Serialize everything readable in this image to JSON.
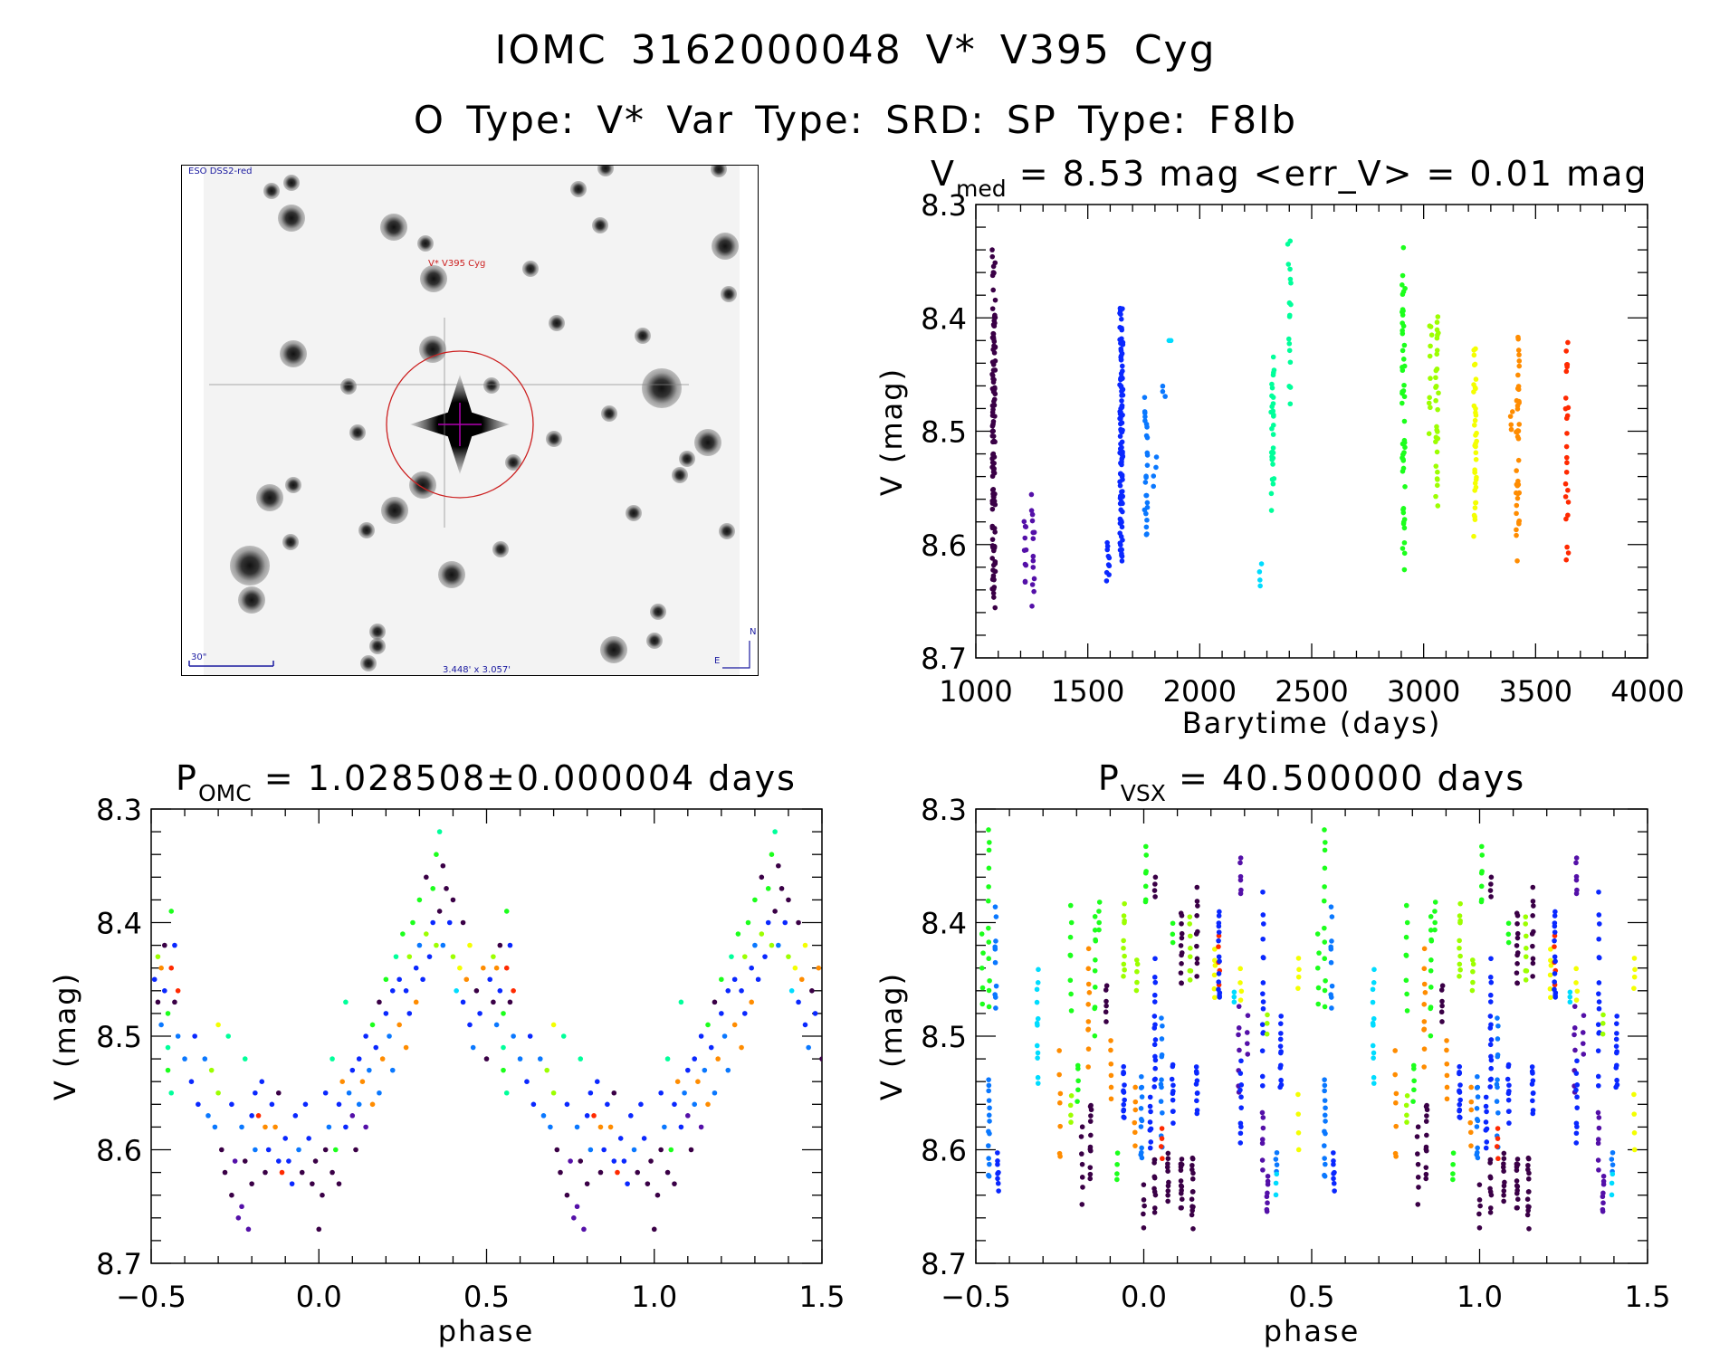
{
  "header": {
    "title_line1": "IOMC 3162000048   V* V395 Cyg",
    "title_line2": "O Type: V*  Var Type: SRD:  SP Type: F8Ib"
  },
  "finder_image": {
    "survey_label": "ESO DSS2-red",
    "target_label": "V* V395 Cyg",
    "scale_label": "30\"",
    "field_label": "3.448' x 3.057'",
    "north_label": "N",
    "east_label": "E",
    "colors": {
      "marker_circle": "#cc2020",
      "crosshair": "#b000b0",
      "labels": "#1a1aa0"
    }
  },
  "palette": [
    "#3a0046",
    "#5410a8",
    "#0a28ff",
    "#0a78ff",
    "#00dcff",
    "#00ff9a",
    "#1cff1c",
    "#9cff00",
    "#f4ff00",
    "#ff8c00",
    "#ff2a00"
  ],
  "chart_data": [
    {
      "id": "lightcurve",
      "type": "scatter",
      "title_main": "V",
      "title_sub": "med",
      "title_rest": " = 8.53 mag <err_V> = 0.01 mag",
      "xlabel": "Barytime (days)",
      "ylabel": "V (mag)",
      "xlim": [
        1000,
        4000
      ],
      "ylim": [
        8.3,
        8.7
      ],
      "y_inverted": true,
      "xticks": [
        "1000",
        "1500",
        "2000",
        "2500",
        "3000",
        "3500",
        "4000"
      ],
      "yticks": [
        "8.3",
        "8.4",
        "8.5",
        "8.6",
        "8.7"
      ],
      "streak_format": [
        "time",
        "mag_bright",
        "mag_faint",
        "n_points",
        "color_index"
      ],
      "streaks": [
        [
          1080,
          8.34,
          8.67,
          120,
          0
        ],
        [
          1220,
          8.57,
          8.64,
          10,
          1
        ],
        [
          1255,
          8.555,
          8.655,
          14,
          1
        ],
        [
          1590,
          8.595,
          8.635,
          10,
          2
        ],
        [
          1650,
          8.38,
          8.625,
          110,
          2
        ],
        [
          1760,
          8.46,
          8.61,
          25,
          3
        ],
        [
          1800,
          8.52,
          8.55,
          4,
          3
        ],
        [
          1840,
          8.46,
          8.47,
          3,
          3
        ],
        [
          1865,
          8.42,
          8.42,
          2,
          4
        ],
        [
          2270,
          8.615,
          8.64,
          4,
          4
        ],
        [
          2325,
          8.43,
          8.57,
          30,
          5
        ],
        [
          2400,
          8.31,
          8.49,
          18,
          5
        ],
        [
          2910,
          8.33,
          8.63,
          50,
          6
        ],
        [
          3030,
          8.39,
          8.505,
          10,
          7
        ],
        [
          3060,
          8.38,
          8.575,
          30,
          7
        ],
        [
          3230,
          8.415,
          8.6,
          40,
          8
        ],
        [
          3390,
          8.48,
          8.5,
          4,
          9
        ],
        [
          3420,
          8.405,
          8.615,
          40,
          9
        ],
        [
          3640,
          8.4,
          8.625,
          25,
          10
        ]
      ]
    },
    {
      "id": "phase_omc",
      "type": "scatter",
      "title_main": "P",
      "title_sub": "OMC",
      "title_rest": " = 1.028508±0.000004 days",
      "xlabel": "phase",
      "ylabel": "V (mag)",
      "xlim": [
        -0.5,
        1.5
      ],
      "ylim": [
        8.3,
        8.7
      ],
      "y_inverted": true,
      "repeat_period": 1.0,
      "xticks": [
        "−0.5",
        "0.0",
        "0.5",
        "1.0",
        "1.5"
      ],
      "yticks": [
        "8.3",
        "8.4",
        "8.5",
        "8.6",
        "8.7"
      ],
      "point_format": [
        "phase",
        "mag",
        "color_index"
      ],
      "points": [
        [
          -0.49,
          8.45,
          2
        ],
        [
          -0.48,
          8.43,
          7
        ],
        [
          -0.48,
          8.47,
          0
        ],
        [
          -0.47,
          8.44,
          9
        ],
        [
          -0.47,
          8.49,
          3
        ],
        [
          -0.46,
          8.42,
          0
        ],
        [
          -0.46,
          8.46,
          2
        ],
        [
          -0.45,
          8.48,
          6
        ],
        [
          -0.45,
          8.51,
          5
        ],
        [
          -0.44,
          8.39,
          6
        ],
        [
          -0.44,
          8.44,
          10
        ],
        [
          -0.43,
          8.42,
          2
        ],
        [
          -0.43,
          8.47,
          0
        ],
        [
          -0.42,
          8.46,
          10
        ],
        [
          -0.45,
          8.53,
          6
        ],
        [
          -0.44,
          8.55,
          5
        ],
        [
          -0.42,
          8.5,
          3
        ],
        [
          -0.4,
          8.52,
          3
        ],
        [
          -0.38,
          8.54,
          2
        ],
        [
          -0.37,
          8.5,
          2
        ],
        [
          -0.36,
          8.56,
          2
        ],
        [
          -0.34,
          8.52,
          3
        ],
        [
          -0.33,
          8.57,
          3
        ],
        [
          -0.32,
          8.53,
          7
        ],
        [
          -0.3,
          8.49,
          8
        ],
        [
          -0.3,
          8.55,
          7
        ],
        [
          -0.31,
          8.58,
          3
        ],
        [
          -0.29,
          8.6,
          0
        ],
        [
          -0.28,
          8.62,
          0
        ],
        [
          -0.27,
          8.5,
          5
        ],
        [
          -0.26,
          8.56,
          2
        ],
        [
          -0.26,
          8.64,
          0
        ],
        [
          -0.25,
          8.61,
          1
        ],
        [
          -0.24,
          8.66,
          1
        ],
        [
          -0.23,
          8.65,
          1
        ],
        [
          -0.23,
          8.58,
          3
        ],
        [
          -0.22,
          8.52,
          5
        ],
        [
          -0.22,
          8.61,
          0
        ],
        [
          -0.21,
          8.67,
          1
        ],
        [
          -0.2,
          8.63,
          0
        ],
        [
          -0.2,
          8.57,
          2
        ],
        [
          -0.19,
          8.55,
          2
        ],
        [
          -0.19,
          8.6,
          3
        ],
        [
          -0.18,
          8.57,
          10
        ],
        [
          -0.17,
          8.54,
          2
        ],
        [
          -0.16,
          8.58,
          9
        ],
        [
          -0.16,
          8.62,
          0
        ],
        [
          -0.15,
          8.6,
          2
        ],
        [
          -0.14,
          8.56,
          2
        ],
        [
          -0.13,
          8.58,
          9
        ],
        [
          -0.12,
          8.61,
          2
        ],
        [
          -0.12,
          8.55,
          0
        ],
        [
          -0.11,
          8.62,
          10
        ],
        [
          -0.1,
          8.59,
          2
        ],
        [
          -0.09,
          8.61,
          2
        ],
        [
          -0.08,
          8.63,
          2
        ],
        [
          -0.07,
          8.57,
          2
        ],
        [
          -0.06,
          8.6,
          3
        ],
        [
          -0.05,
          8.62,
          0
        ],
        [
          -0.04,
          8.56,
          2
        ],
        [
          -0.03,
          8.59,
          2
        ],
        [
          -0.02,
          8.63,
          0
        ],
        [
          -0.01,
          8.61,
          0
        ],
        [
          0.0,
          8.67,
          0
        ],
        [
          0.01,
          8.64,
          0
        ],
        [
          0.02,
          8.6,
          0
        ],
        [
          0.02,
          8.55,
          2
        ],
        [
          0.03,
          8.58,
          3
        ],
        [
          0.04,
          8.62,
          0
        ],
        [
          0.04,
          8.52,
          5
        ],
        [
          0.05,
          8.6,
          6
        ],
        [
          0.06,
          8.56,
          2
        ],
        [
          0.06,
          8.63,
          0
        ],
        [
          0.07,
          8.54,
          9
        ],
        [
          0.08,
          8.58,
          2
        ],
        [
          0.08,
          8.47,
          5
        ],
        [
          0.09,
          8.55,
          3
        ],
        [
          0.1,
          8.53,
          2
        ],
        [
          0.1,
          8.57,
          1
        ],
        [
          0.11,
          8.6,
          0
        ],
        [
          0.12,
          8.52,
          2
        ],
        [
          0.12,
          8.56,
          3
        ],
        [
          0.13,
          8.54,
          9
        ],
        [
          0.14,
          8.5,
          2
        ],
        [
          0.14,
          8.58,
          1
        ],
        [
          0.15,
          8.53,
          3
        ],
        [
          0.16,
          8.49,
          6
        ],
        [
          0.16,
          8.56,
          9
        ],
        [
          0.17,
          8.51,
          2
        ],
        [
          0.18,
          8.55,
          3
        ],
        [
          0.18,
          8.47,
          0
        ],
        [
          0.19,
          8.52,
          9
        ],
        [
          0.2,
          8.48,
          2
        ],
        [
          0.2,
          8.45,
          6
        ],
        [
          0.21,
          8.5,
          3
        ],
        [
          0.22,
          8.46,
          2
        ],
        [
          0.22,
          8.53,
          3
        ],
        [
          0.23,
          8.43,
          5
        ],
        [
          0.24,
          8.49,
          9
        ],
        [
          0.24,
          8.45,
          2
        ],
        [
          0.25,
          8.41,
          6
        ],
        [
          0.26,
          8.46,
          2
        ],
        [
          0.26,
          8.51,
          9
        ],
        [
          0.27,
          8.43,
          7
        ],
        [
          0.27,
          8.48,
          2
        ],
        [
          0.28,
          8.4,
          6
        ],
        [
          0.29,
          8.44,
          2
        ],
        [
          0.29,
          8.47,
          9
        ],
        [
          0.3,
          8.42,
          3
        ],
        [
          0.3,
          8.38,
          6
        ],
        [
          0.31,
          8.45,
          2
        ],
        [
          0.32,
          8.36,
          0
        ],
        [
          0.32,
          8.41,
          7
        ],
        [
          0.33,
          8.43,
          2
        ],
        [
          0.34,
          8.37,
          6
        ],
        [
          0.34,
          8.4,
          2
        ],
        [
          0.35,
          8.34,
          6
        ],
        [
          0.35,
          8.42,
          7
        ],
        [
          0.36,
          8.32,
          5
        ],
        [
          0.36,
          8.39,
          0
        ],
        [
          0.37,
          8.35,
          0
        ],
        [
          0.37,
          8.42,
          3
        ],
        [
          0.38,
          8.37,
          0
        ],
        [
          0.39,
          8.4,
          2
        ],
        [
          0.4,
          8.43,
          7
        ],
        [
          0.4,
          8.38,
          0
        ],
        [
          0.41,
          8.46,
          4
        ],
        [
          0.42,
          8.44,
          8
        ],
        [
          0.43,
          8.4,
          0
        ],
        [
          0.43,
          8.47,
          2
        ],
        [
          0.44,
          8.45,
          9
        ],
        [
          0.45,
          8.42,
          8
        ],
        [
          0.45,
          8.49,
          2
        ],
        [
          0.46,
          8.51,
          3
        ],
        [
          0.47,
          8.46,
          0
        ],
        [
          0.48,
          8.48,
          2
        ],
        [
          0.49,
          8.44,
          9
        ],
        [
          0.5,
          8.52,
          0
        ]
      ]
    },
    {
      "id": "phase_vsx",
      "type": "scatter",
      "title_main": "P",
      "title_sub": "VSX",
      "title_rest": " = 40.500000 days",
      "xlabel": "phase",
      "ylabel": "V (mag)",
      "xlim": [
        -0.5,
        1.5
      ],
      "ylim": [
        8.3,
        8.7
      ],
      "y_inverted": true,
      "repeat_period": 1.0,
      "xticks": [
        "−0.5",
        "0.0",
        "0.5",
        "1.0",
        "1.5"
      ],
      "yticks": [
        "8.3",
        "8.4",
        "8.5",
        "8.6",
        "8.7"
      ],
      "streak_format": [
        "phase",
        "mag_bright",
        "mag_faint",
        "n_points",
        "color_index"
      ],
      "streaks": [
        [
          -0.48,
          8.41,
          8.48,
          5,
          6
        ],
        [
          -0.461,
          8.31,
          8.37,
          5,
          6
        ],
        [
          -0.461,
          8.38,
          8.49,
          7,
          6
        ],
        [
          -0.461,
          8.53,
          8.63,
          14,
          3
        ],
        [
          -0.441,
          8.38,
          8.49,
          10,
          3
        ],
        [
          -0.434,
          8.6,
          8.64,
          8,
          2
        ],
        [
          -0.316,
          8.43,
          8.55,
          12,
          4
        ],
        [
          -0.25,
          8.51,
          8.62,
          7,
          9
        ],
        [
          -0.217,
          8.38,
          8.48,
          8,
          6
        ],
        [
          -0.217,
          8.55,
          8.58,
          4,
          7
        ],
        [
          -0.197,
          8.52,
          8.56,
          5,
          6
        ],
        [
          -0.184,
          8.57,
          8.65,
          7,
          0
        ],
        [
          -0.164,
          8.42,
          8.53,
          10,
          9
        ],
        [
          -0.158,
          8.55,
          8.63,
          12,
          0
        ],
        [
          -0.145,
          8.38,
          8.5,
          10,
          6
        ],
        [
          -0.132,
          8.38,
          8.41,
          4,
          6
        ],
        [
          -0.112,
          8.45,
          8.49,
          6,
          0
        ],
        [
          -0.099,
          8.5,
          8.56,
          6,
          9
        ],
        [
          -0.079,
          8.6,
          8.63,
          4,
          6
        ],
        [
          -0.059,
          8.38,
          8.45,
          10,
          7
        ],
        [
          -0.059,
          8.52,
          8.58,
          14,
          2
        ],
        [
          -0.026,
          8.54,
          8.6,
          6,
          9
        ],
        [
          -0.02,
          8.43,
          8.46,
          5,
          7
        ],
        [
          -0.007,
          8.53,
          8.62,
          12,
          3
        ],
        [
          0.0,
          8.63,
          8.67,
          5,
          0
        ],
        [
          0.007,
          8.33,
          8.39,
          7,
          6
        ],
        [
          0.02,
          8.55,
          8.6,
          8,
          2
        ],
        [
          0.033,
          8.36,
          8.38,
          4,
          0
        ],
        [
          0.033,
          8.43,
          8.5,
          8,
          2
        ],
        [
          0.033,
          8.5,
          8.55,
          8,
          2
        ],
        [
          0.033,
          8.6,
          8.66,
          10,
          0
        ],
        [
          0.053,
          8.47,
          8.6,
          12,
          3
        ],
        [
          0.053,
          8.58,
          8.61,
          4,
          10
        ],
        [
          0.072,
          8.6,
          8.65,
          10,
          0
        ],
        [
          0.086,
          8.4,
          8.42,
          3,
          6
        ],
        [
          0.086,
          8.52,
          8.58,
          10,
          2
        ],
        [
          0.112,
          8.38,
          8.46,
          12,
          0
        ],
        [
          0.112,
          8.6,
          8.66,
          14,
          0
        ],
        [
          0.138,
          8.39,
          8.46,
          8,
          7
        ],
        [
          0.145,
          8.6,
          8.67,
          14,
          0
        ],
        [
          0.158,
          8.36,
          8.46,
          10,
          0
        ],
        [
          0.158,
          8.52,
          8.57,
          10,
          2
        ],
        [
          0.211,
          8.42,
          8.47,
          6,
          8
        ],
        [
          0.224,
          8.41,
          8.46,
          5,
          10
        ],
        [
          0.224,
          8.38,
          8.48,
          14,
          2
        ],
        [
          0.27,
          8.46,
          8.47,
          3,
          4
        ],
        [
          0.283,
          8.47,
          8.56,
          7,
          1
        ],
        [
          0.289,
          8.34,
          8.38,
          6,
          1
        ],
        [
          0.289,
          8.52,
          8.6,
          10,
          2
        ],
        [
          0.289,
          8.44,
          8.47,
          4,
          8
        ],
        [
          0.309,
          8.48,
          8.52,
          4,
          1
        ],
        [
          0.355,
          8.37,
          8.55,
          16,
          2
        ],
        [
          0.355,
          8.56,
          8.62,
          7,
          1
        ],
        [
          0.368,
          8.62,
          8.66,
          8,
          1
        ],
        [
          0.368,
          8.48,
          8.5,
          3,
          7
        ],
        [
          0.395,
          8.6,
          8.62,
          4,
          3
        ],
        [
          0.395,
          8.62,
          8.64,
          3,
          4
        ],
        [
          0.408,
          8.48,
          8.55,
          12,
          2
        ],
        [
          0.461,
          8.43,
          8.46,
          4,
          8
        ],
        [
          0.461,
          8.55,
          8.6,
          4,
          8
        ]
      ]
    }
  ]
}
